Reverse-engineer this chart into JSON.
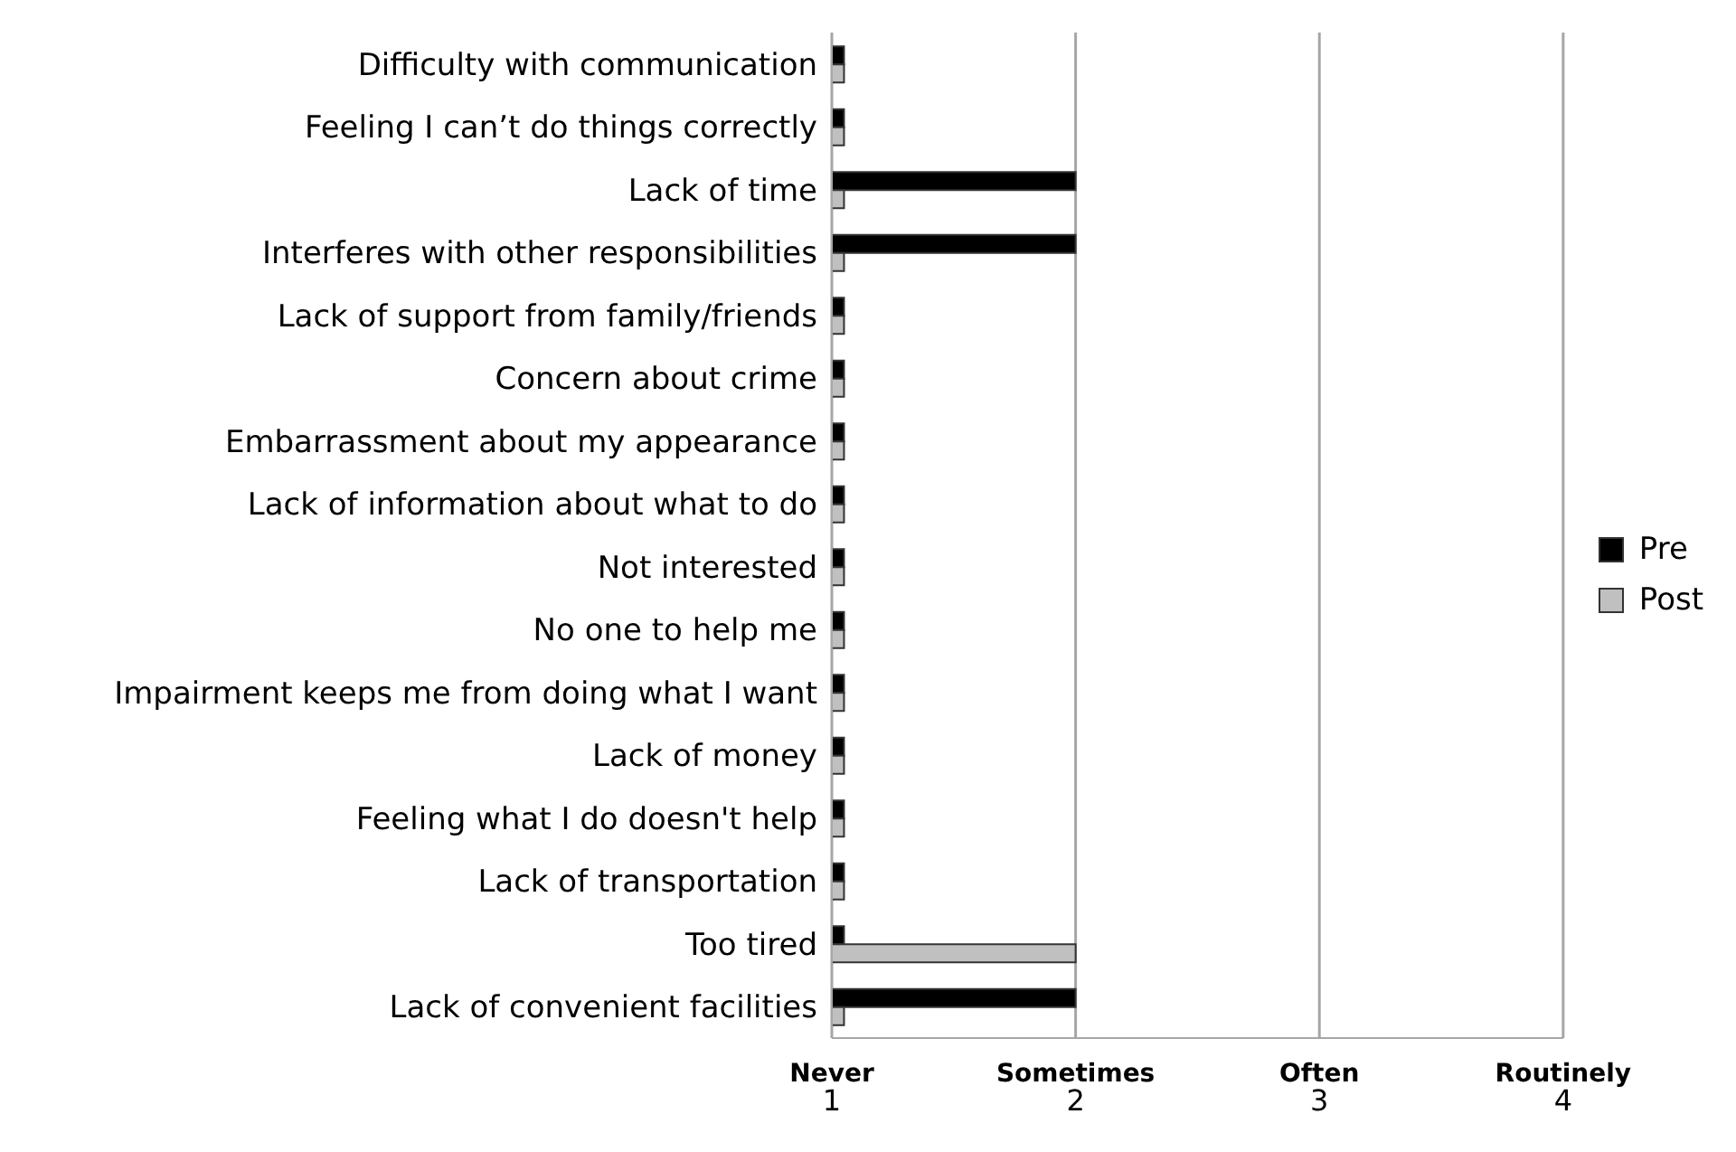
{
  "chart_data": {
    "type": "bar",
    "orientation": "horizontal",
    "categories": [
      "Difficulty with communication",
      "Feeling I can’t do things correctly",
      "Lack of time",
      "Interferes with other responsibilities",
      "Lack of support from family/friends",
      "Concern about crime",
      "Embarrassment about my appearance",
      "Lack of information about what to do",
      "Not interested",
      "No one to help me",
      "Impairment keeps me from doing what I want",
      "Lack of money",
      "Feeling what I do doesn't help",
      "Lack of transportation",
      "Too tired",
      "Lack of convenient facilities"
    ],
    "series": [
      {
        "name": "Pre",
        "color": "#000000",
        "values": [
          1.05,
          1.05,
          2,
          2,
          1.05,
          1.05,
          1.05,
          1.05,
          1.05,
          1.05,
          1.05,
          1.05,
          1.05,
          1.05,
          1.05,
          2
        ]
      },
      {
        "name": "Post",
        "color": "#c0c0c0",
        "values": [
          1.05,
          1.05,
          1.05,
          1.05,
          1.05,
          1.05,
          1.05,
          1.05,
          1.05,
          1.05,
          1.05,
          1.05,
          1.05,
          1.05,
          2,
          1.05
        ]
      }
    ],
    "xlim": [
      1,
      4
    ],
    "xticks": [
      1,
      2,
      3,
      4
    ],
    "annotations": [
      "Never",
      "Sometimes",
      "Often",
      "Routinely"
    ],
    "grid": "x",
    "legend": "right"
  }
}
